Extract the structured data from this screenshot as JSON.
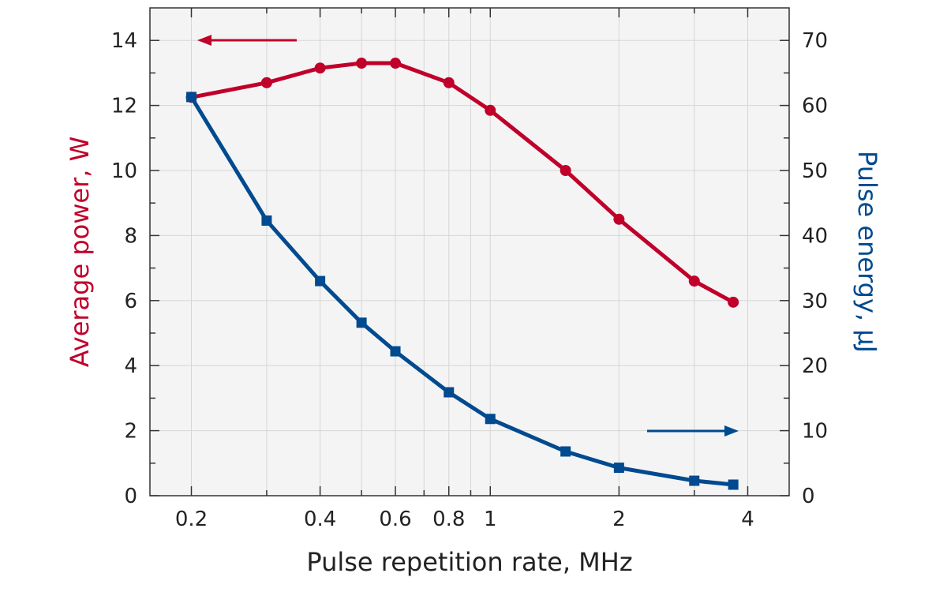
{
  "chart_data": {
    "type": "line",
    "xlabel": "Pulse repetition rate, MHz",
    "ylabel_left": "Average power, W",
    "ylabel_right": "Pulse energy, µJ",
    "x_scale": "log",
    "xlim": [
      0.16,
      5
    ],
    "xticks": [
      0.2,
      0.4,
      0.6,
      0.8,
      1,
      2,
      4
    ],
    "xtick_labels": [
      "0.2",
      "0.4",
      "0.6",
      "0.8",
      "1",
      "2",
      "4"
    ],
    "ylim_left": [
      0,
      15
    ],
    "yticks_left": [
      0,
      2,
      4,
      6,
      8,
      10,
      12,
      14
    ],
    "ylim_right": [
      0,
      75
    ],
    "yticks_right": [
      0,
      10,
      20,
      30,
      40,
      50,
      60,
      70
    ],
    "grid": true,
    "colors": {
      "power": "#c0002a",
      "energy": "#004a8f",
      "plot_bg": "#f4f4f5",
      "grid": "#d6d6d6"
    },
    "series": [
      {
        "axis": "left",
        "marker": "circle",
        "x": [
          0.2,
          0.3,
          0.4,
          0.5,
          0.6,
          0.8,
          1.0,
          1.5,
          2.0,
          3.0,
          3.7
        ],
        "y": [
          12.25,
          12.7,
          13.15,
          13.3,
          13.3,
          12.7,
          11.85,
          10.0,
          8.5,
          6.6,
          5.95
        ]
      },
      {
        "axis": "right",
        "marker": "square",
        "x": [
          0.2,
          0.3,
          0.4,
          0.5,
          0.6,
          0.8,
          1.0,
          1.5,
          2.0,
          3.0,
          3.7
        ],
        "y": [
          61.3,
          42.3,
          33.0,
          26.6,
          22.2,
          15.9,
          11.8,
          6.8,
          4.3,
          2.3,
          1.7
        ]
      }
    ]
  }
}
